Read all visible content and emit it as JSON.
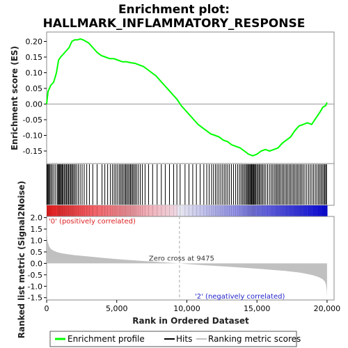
{
  "chart_data": {
    "type": "line",
    "title": [
      "Enrichment plot:",
      "HALLMARK_INFLAMMATORY_RESPONSE"
    ],
    "es_panel": {
      "ylabel": "Enrichment score (ES)",
      "ylim": [
        -0.19,
        0.23
      ],
      "yticks": [
        "0.20",
        "0.15",
        "0.10",
        "0.05",
        "0.00",
        "-0.05",
        "-0.10",
        "-0.15"
      ],
      "ytick_values": [
        0.2,
        0.15,
        0.1,
        0.05,
        0.0,
        -0.05,
        -0.1,
        -0.15
      ],
      "series": [
        {
          "name": "Enrichment profile",
          "color": "#00ff00",
          "x": [
            0,
            100,
            300,
            500,
            700,
            850,
            1000,
            1200,
            1400,
            1600,
            1800,
            2000,
            2200,
            2400,
            2600,
            2800,
            3000,
            3300,
            3600,
            3900,
            4200,
            4500,
            4800,
            5100,
            5400,
            5700,
            6000,
            6300,
            6600,
            6900,
            7200,
            7500,
            7800,
            8100,
            8400,
            8700,
            9000,
            9300,
            9600,
            9900,
            10200,
            10500,
            10800,
            11100,
            11400,
            11700,
            12000,
            12300,
            12600,
            12900,
            13200,
            13500,
            13800,
            14100,
            14400,
            14700,
            15000,
            15300,
            15600,
            15900,
            16200,
            16500,
            16800,
            17100,
            17400,
            17700,
            18000,
            18300,
            18600,
            18900,
            19200,
            19500,
            19700,
            19900,
            20000
          ],
          "y": [
            0.0,
            0.04,
            0.06,
            0.07,
            0.1,
            0.14,
            0.15,
            0.16,
            0.17,
            0.18,
            0.2,
            0.205,
            0.205,
            0.208,
            0.205,
            0.2,
            0.195,
            0.18,
            0.165,
            0.155,
            0.15,
            0.145,
            0.145,
            0.14,
            0.135,
            0.135,
            0.132,
            0.13,
            0.125,
            0.12,
            0.11,
            0.1,
            0.09,
            0.075,
            0.06,
            0.045,
            0.03,
            0.015,
            -0.005,
            -0.02,
            -0.035,
            -0.05,
            -0.065,
            -0.075,
            -0.085,
            -0.095,
            -0.1,
            -0.105,
            -0.115,
            -0.12,
            -0.13,
            -0.135,
            -0.14,
            -0.15,
            -0.16,
            -0.165,
            -0.16,
            -0.15,
            -0.145,
            -0.15,
            -0.145,
            -0.14,
            -0.125,
            -0.115,
            -0.105,
            -0.085,
            -0.07,
            -0.065,
            -0.06,
            -0.065,
            -0.045,
            -0.025,
            -0.01,
            -0.005,
            0.005
          ]
        }
      ]
    },
    "hits": {
      "name": "Hits",
      "x": [
        30,
        60,
        110,
        170,
        240,
        320,
        410,
        520,
        640,
        760,
        830,
        880,
        930,
        990,
        1050,
        1120,
        1180,
        1260,
        1340,
        1410,
        1490,
        1560,
        1640,
        1720,
        1790,
        1870,
        1950,
        2040,
        2140,
        2260,
        2390,
        2530,
        2680,
        2860,
        3050,
        3290,
        3600,
        3950,
        4150,
        4350,
        4550,
        4700,
        4820,
        4940,
        5060,
        5180,
        5280,
        5370,
        5460,
        5560,
        5640,
        5720,
        5810,
        5900,
        5980,
        6060,
        6140,
        6230,
        6320,
        6420,
        6540,
        6680,
        6830,
        7020,
        7270,
        7560,
        7880,
        8180,
        8460,
        8760,
        9060,
        9290,
        9520,
        9870,
        10150,
        10420,
        10680,
        10950,
        11210,
        11420,
        11590,
        11760,
        11900,
        12040,
        12160,
        12290,
        12420,
        12550,
        12670,
        12790,
        12910,
        13040,
        13180,
        13330,
        13480,
        13620,
        13750,
        13860,
        13960,
        14050,
        14140,
        14230,
        14300,
        14370,
        14440,
        14500,
        14560,
        14620,
        14680,
        14740,
        14790,
        14850,
        14920,
        15000,
        15080,
        15160,
        15240,
        15330,
        15420,
        15520,
        15630,
        15760,
        15890,
        16010,
        16120,
        16230,
        16330,
        16420,
        16510,
        16600,
        16700,
        16800,
        16900,
        17000,
        17100,
        17200,
        17300,
        17400,
        17500,
        17600,
        17700,
        17800,
        17900,
        18000,
        18100,
        18200,
        18300,
        18420,
        18550,
        18680,
        18800,
        18920,
        19040,
        19160,
        19270,
        19380,
        19480,
        19570,
        19660,
        19750,
        19830,
        19910,
        19960
      ]
    },
    "rank_panel": {
      "ylabel": "Ranked list metric (Signal2Noise)",
      "xlabel": "Rank in Ordered Dataset",
      "ylim": [
        -1.6,
        2.05
      ],
      "yticks": [
        "2.0",
        "1.5",
        "1.0",
        "0.5",
        "0.0",
        "-0.5",
        "-1.0",
        "-1.5"
      ],
      "ytick_values": [
        2.0,
        1.5,
        1.0,
        0.5,
        0.0,
        -0.5,
        -1.0,
        -1.5
      ],
      "xticks": [
        "0",
        "5,000",
        "10,000",
        "15,000",
        "20,000"
      ],
      "xtick_values": [
        0,
        5000,
        10000,
        15000,
        20000
      ],
      "xlim": [
        0,
        20500
      ],
      "n_genes": 20000,
      "zero_cross": 9475,
      "zero_cross_label": "Zero cross at 9475",
      "pos_label": "'0' (positively correlated)",
      "neg_label": "'2' (negatively correlated)",
      "metric_x": [
        0,
        20,
        60,
        120,
        200,
        320,
        500,
        750,
        1000,
        1500,
        2000,
        3000,
        4000,
        5000,
        6000,
        7000,
        8000,
        9000,
        9475,
        10000,
        11000,
        12000,
        13000,
        14000,
        15000,
        16000,
        17000,
        18000,
        18500,
        19000,
        19400,
        19700,
        19850,
        19930,
        19980,
        20000
      ],
      "metric_y": [
        2.0,
        1.3,
        1.0,
        0.85,
        0.72,
        0.62,
        0.55,
        0.49,
        0.45,
        0.4,
        0.36,
        0.3,
        0.24,
        0.19,
        0.14,
        0.1,
        0.06,
        0.02,
        0.0,
        -0.03,
        -0.07,
        -0.11,
        -0.15,
        -0.19,
        -0.23,
        -0.28,
        -0.33,
        -0.4,
        -0.45,
        -0.52,
        -0.6,
        -0.7,
        -0.8,
        -0.95,
        -1.2,
        -1.5
      ],
      "color_pos": "#ff0000",
      "color_neg": "#0000ff"
    },
    "legend": [
      {
        "label": "Enrichment profile",
        "color": "#00ff00"
      },
      {
        "label": "Hits",
        "color": "#000000"
      },
      {
        "label": "Ranking metric scores",
        "color": "#c0c0c0"
      }
    ]
  }
}
